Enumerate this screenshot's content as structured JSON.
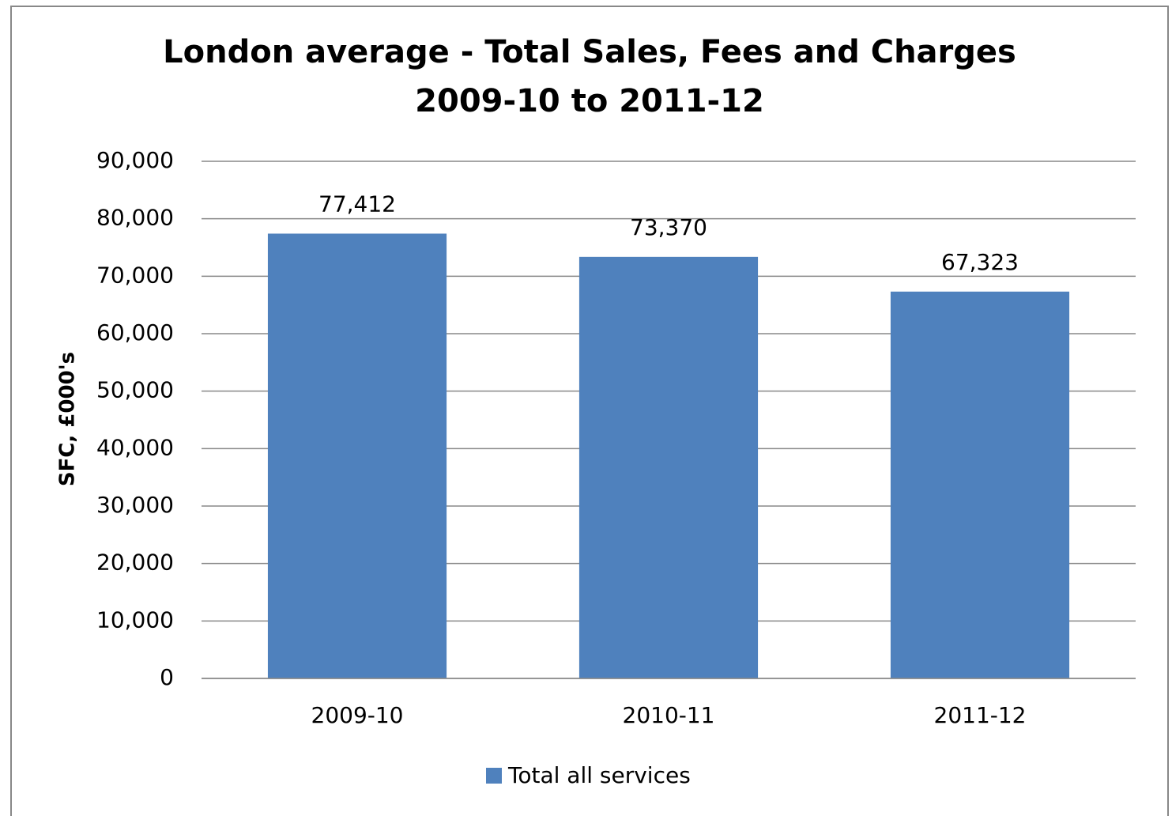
{
  "chart_data": {
    "type": "bar",
    "title": [
      "London average - Total Sales, Fees and Charges",
      "2009-10 to 2011-12"
    ],
    "y_label": "SFC, £000's",
    "categories": [
      "2009-10",
      "2010-11",
      "2011-12"
    ],
    "series": [
      {
        "name": "Total all services",
        "color": "#4f81bd",
        "values": [
          77412,
          73370,
          67323
        ],
        "value_labels": [
          "77,412",
          "73,370",
          "67,323"
        ]
      }
    ],
    "ylim": [
      0,
      90000
    ],
    "yticks": [
      0,
      {
        "value": 10000,
        "label": "10,000"
      },
      {
        "value": 20000,
        "label": "20,000"
      },
      {
        "value": 30000,
        "label": "30,000"
      },
      {
        "value": 40000,
        "label": "40,000"
      },
      {
        "value": 50000,
        "label": "50,000"
      },
      {
        "value": 60000,
        "label": "60,000"
      },
      {
        "value": 70000,
        "label": "70,000"
      },
      {
        "value": 80000,
        "label": "80,000"
      },
      {
        "value": 90000,
        "label": "90,000"
      }
    ],
    "grid": true,
    "legend": "bottom"
  }
}
